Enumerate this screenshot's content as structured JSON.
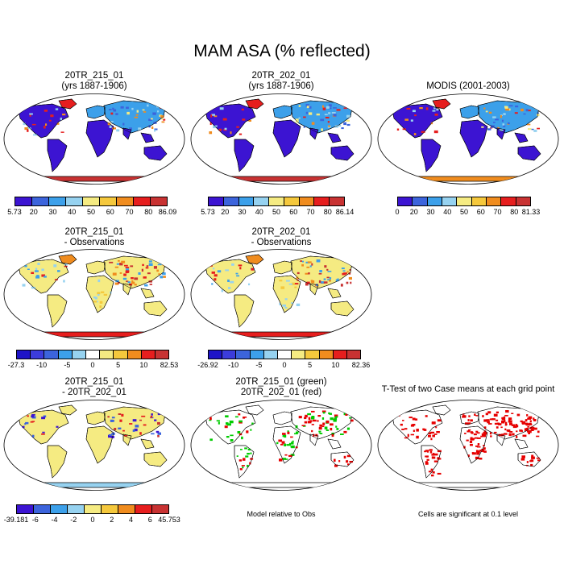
{
  "title": "MAM ASA (% reflected)",
  "colors": [
    "#3c14d2",
    "#3c64dc",
    "#3ca0ea",
    "#96d2f0",
    "#f5eb82",
    "#f5c83c",
    "#f08c1e",
    "#e61e1e",
    "#c83232"
  ],
  "panels": [
    {
      "title1": "20TR_215_01",
      "title2": "(yrs 1887-1906)",
      "labels": [
        "5.73",
        "20",
        "30",
        "40",
        "50",
        "60",
        "70",
        "80",
        "86.09"
      ],
      "kind": "abs"
    },
    {
      "title1": "20TR_202_01",
      "title2": "(yrs 1887-1906)",
      "labels": [
        "5.73",
        "20",
        "30",
        "40",
        "50",
        "60",
        "70",
        "80",
        "86.14"
      ],
      "kind": "abs"
    },
    {
      "title1": "MODIS (2001-2003)",
      "title2": "",
      "labels": [
        "0",
        "20",
        "30",
        "40",
        "50",
        "60",
        "70",
        "80",
        "81.33"
      ],
      "kind": "obs"
    },
    {
      "title1": "20TR_215_01",
      "title2": "- Observations",
      "labels": [
        "-27.3",
        "-10",
        "-5",
        "0",
        "5",
        "10",
        "82.53"
      ],
      "kind": "diff"
    },
    {
      "title1": "20TR_202_01",
      "title2": "- Observations",
      "labels": [
        "-26.92",
        "-10",
        "-5",
        "0",
        "5",
        "10",
        "82.36"
      ],
      "kind": "diff"
    },
    {
      "title1": "20TR_215_01",
      "title2": "- 20TR_202_01",
      "labels": [
        "-39.181",
        "-6",
        "-4",
        "-2",
        "0",
        "2",
        "4",
        "6",
        "45.753"
      ],
      "kind": "diff2"
    },
    {
      "title1": "20TR_215_01 (green)",
      "title2": "20TR_202_01 (red)",
      "note": "Model relative to Obs",
      "kind": "rel"
    },
    {
      "title1": "T-Test of two Case means at each grid point",
      "title2": "",
      "note": "Cells are significant at 0.1 level",
      "kind": "ttest"
    }
  ]
}
